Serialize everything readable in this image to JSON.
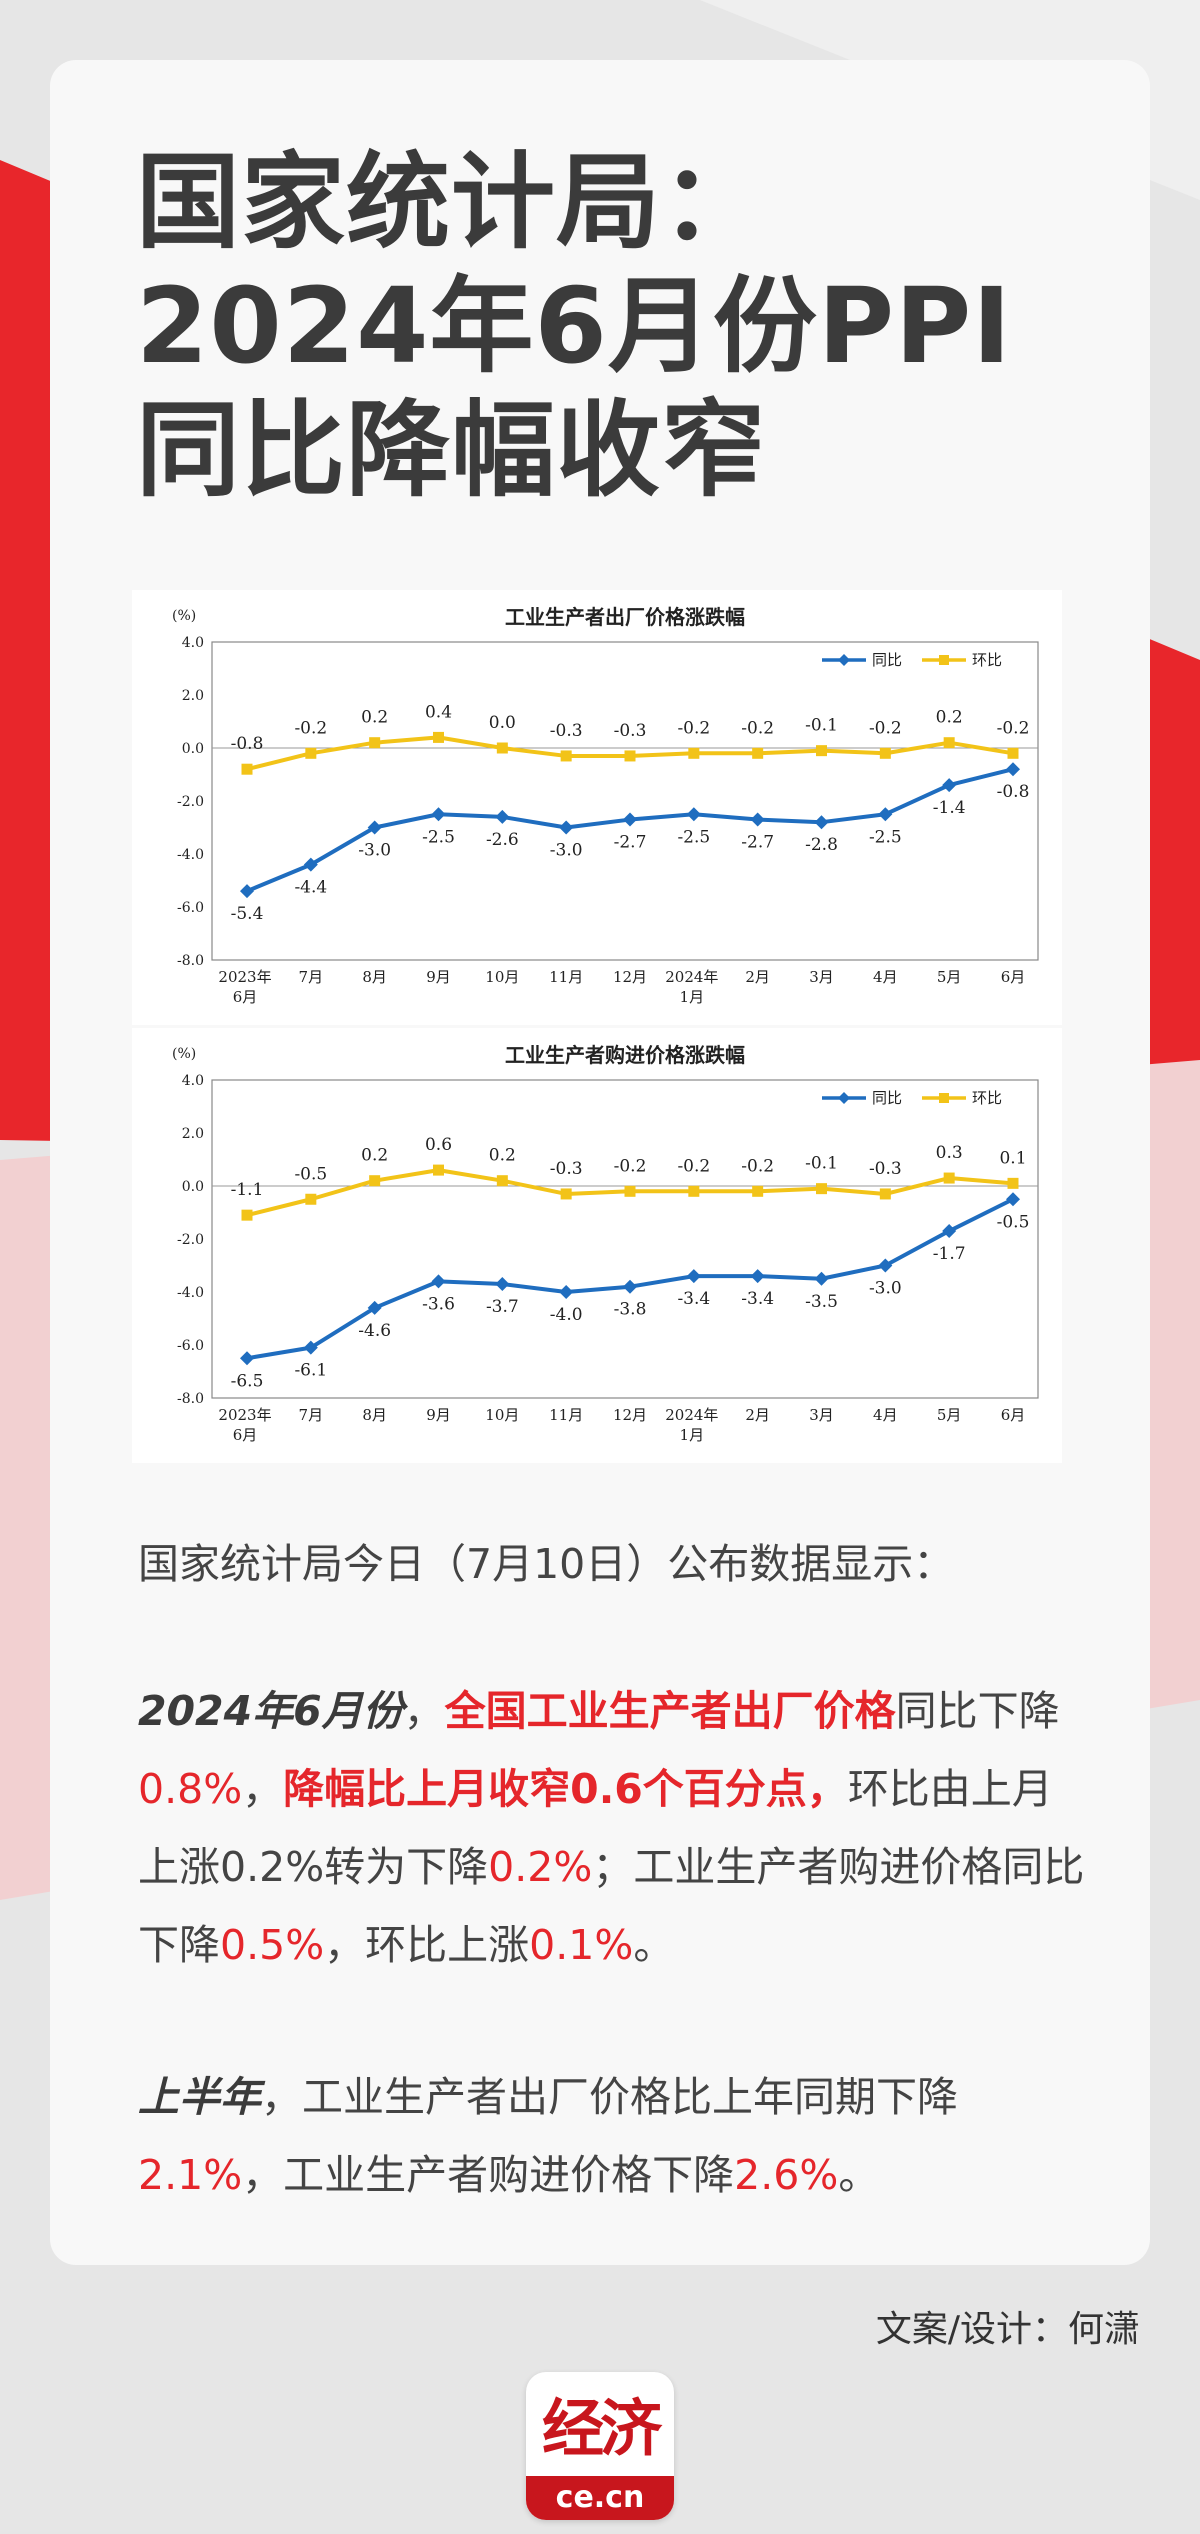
{
  "header": {
    "title_lines": [
      "国家统计局：",
      "2024年6月份PPI",
      "同比降幅收窄"
    ]
  },
  "chart_data": [
    {
      "type": "line",
      "title": "工业生产者出厂价格涨跌幅",
      "unit_label": "(%)",
      "categories": [
        "2023年\n6月",
        "7月",
        "8月",
        "9月",
        "10月",
        "11月",
        "12月",
        "2024年\n1月",
        "2月",
        "3月",
        "4月",
        "5月",
        "6月"
      ],
      "series": [
        {
          "name": "同比",
          "color": "#1f6dbf",
          "values": [
            -5.4,
            -4.4,
            -3.0,
            -2.5,
            -2.6,
            -3.0,
            -2.7,
            -2.5,
            -2.7,
            -2.8,
            -2.5,
            -1.4,
            -0.8
          ]
        },
        {
          "name": "环比",
          "color": "#f2c318",
          "values": [
            -0.8,
            -0.2,
            0.2,
            0.4,
            0.0,
            -0.3,
            -0.3,
            -0.2,
            -0.2,
            -0.1,
            -0.2,
            0.2,
            -0.2
          ]
        }
      ],
      "ylim": [
        -8.0,
        4.0
      ],
      "yticks": [
        "4.0",
        "2.0",
        "0.0",
        "-2.0",
        "-4.0",
        "-6.0",
        "-8.0"
      ],
      "legend_position": "top-right",
      "grid": false
    },
    {
      "type": "line",
      "title": "工业生产者购进价格涨跌幅",
      "unit_label": "(%)",
      "categories": [
        "2023年\n6月",
        "7月",
        "8月",
        "9月",
        "10月",
        "11月",
        "12月",
        "2024年\n1月",
        "2月",
        "3月",
        "4月",
        "5月",
        "6月"
      ],
      "series": [
        {
          "name": "同比",
          "color": "#1f6dbf",
          "values": [
            -6.5,
            -6.1,
            -4.6,
            -3.6,
            -3.7,
            -4.0,
            -3.8,
            -3.4,
            -3.4,
            -3.5,
            -3.0,
            -1.7,
            -0.5
          ]
        },
        {
          "name": "环比",
          "color": "#f2c318",
          "values": [
            -1.1,
            -0.5,
            0.2,
            0.6,
            0.2,
            -0.3,
            -0.2,
            -0.2,
            -0.2,
            -0.1,
            -0.3,
            0.3,
            0.1
          ]
        }
      ],
      "ylim": [
        -8.0,
        4.0
      ],
      "yticks": [
        "4.0",
        "2.0",
        "0.0",
        "-2.0",
        "-4.0",
        "-6.0",
        "-8.0"
      ],
      "legend_position": "top-right",
      "grid": false
    }
  ],
  "intro": "国家统计局今日（7月10日）公布数据显示：",
  "para1": {
    "lead": "2024年6月份",
    "sep1": "，",
    "highlight1": "全国工业生产者出厂价格",
    "t1": "同比下降",
    "v1": "0.8%",
    "sep2": "，",
    "highlight2": "降幅比上月收窄0.6个百分点，",
    "t2": "环比由上月上涨0.2%转为下降",
    "v2": "0.2%",
    "t3": "；工业生产者购进价格同比下降",
    "v3": "0.5%",
    "t4": "，环比上涨",
    "v4": "0.1%",
    "t5": "。"
  },
  "para2": {
    "lead": "上半年",
    "t1": "，工业生产者出厂价格比上年同期下降",
    "v1": "2.1%",
    "t2": "，工业生产者购进价格下降",
    "v2": "2.6%",
    "t3": "。"
  },
  "credit": "文案/设计：何潇",
  "logo": {
    "mark": "经济",
    "domain": "ce.cn"
  },
  "colors": {
    "accent_red": "#e5262b",
    "brand_red": "#c8161d",
    "series_yoy": "#1f6dbf",
    "series_mom": "#f2c318"
  }
}
